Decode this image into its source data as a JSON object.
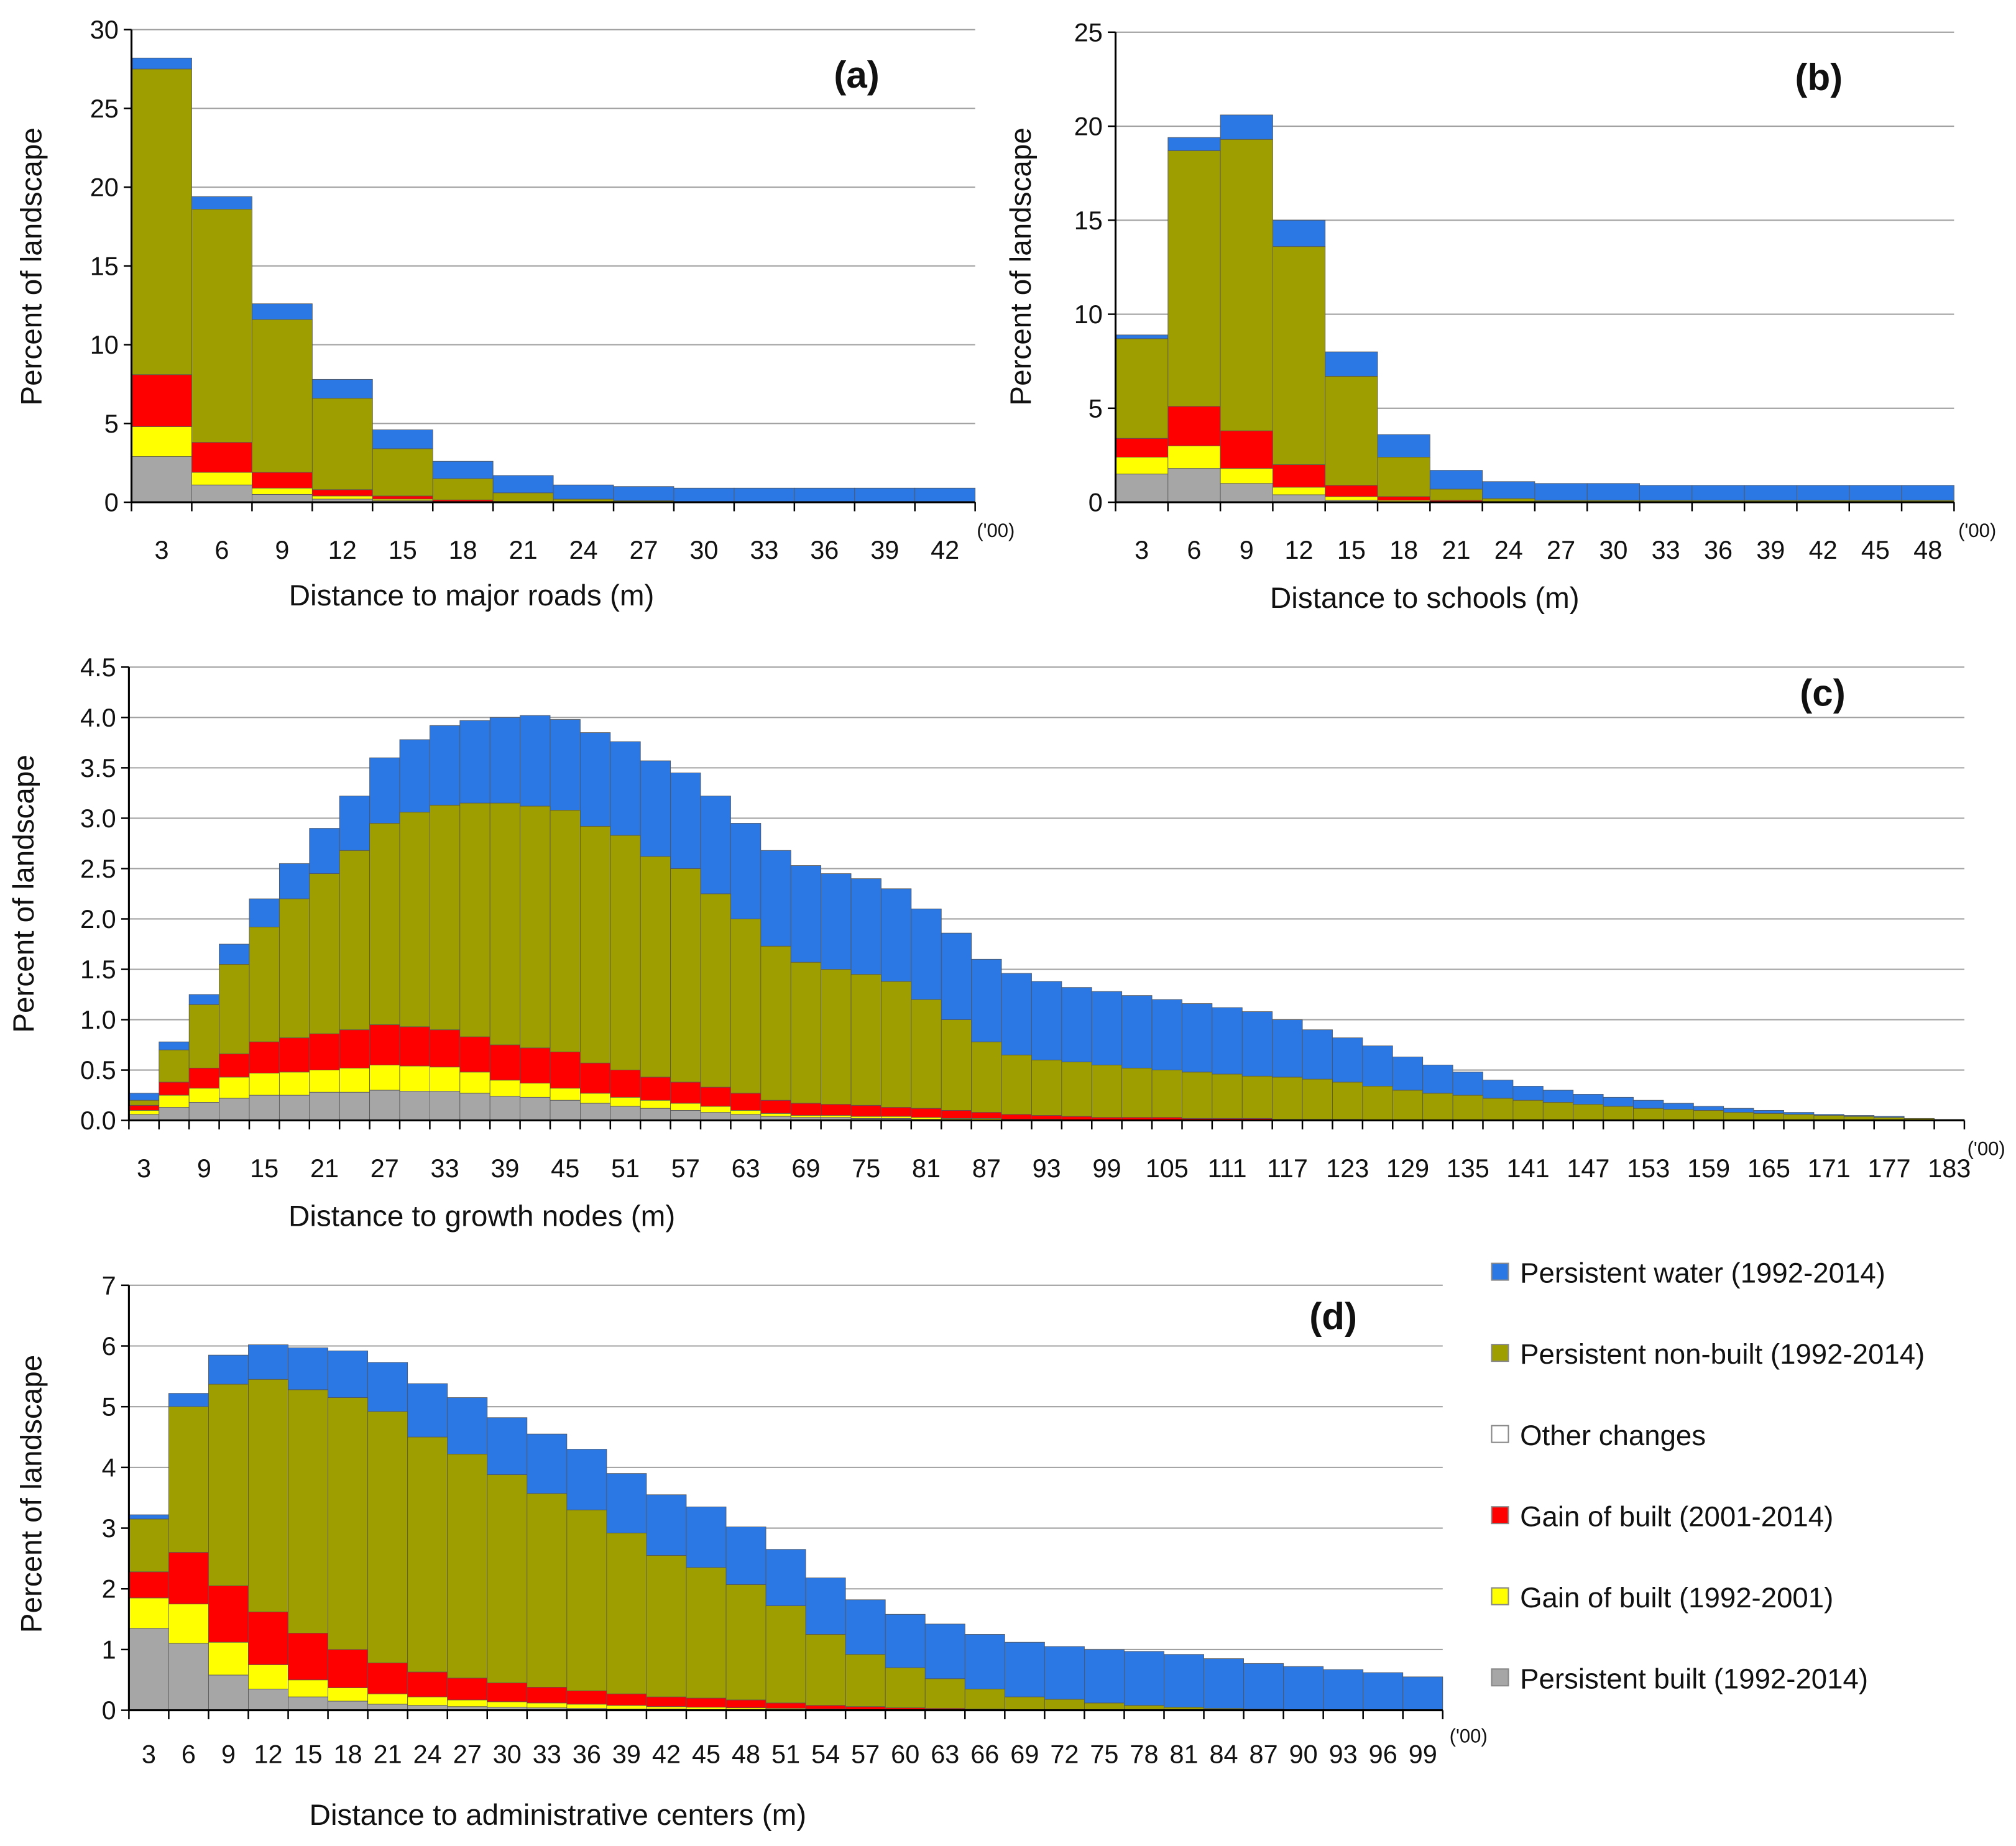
{
  "legend": [
    {
      "name": "Persistent water (1992-2014)",
      "color": "#2b78e4"
    },
    {
      "name": "Persistent non-built (1992-2014)",
      "color": "#9e9e00"
    },
    {
      "name": "Other changes",
      "color": "#ffffff"
    },
    {
      "name": "Gain of built (2001-2014)",
      "color": "#ff0000"
    },
    {
      "name": "Gain of built (1992-2001)",
      "color": "#ffff00"
    },
    {
      "name": "Persistent built (1992-2014)",
      "color": "#a6a6a6"
    }
  ],
  "chart_data": [
    {
      "panel": "(a)",
      "type": "bar",
      "stacked": true,
      "stack_representation": "cumulative top of each series (bottom to top)",
      "xlabel": "Distance to major roads (m)",
      "ylabel": "Percent of landscape",
      "unit_note": "('00)",
      "ylim": [
        0,
        30
      ],
      "yticks": [
        "0",
        "5",
        "10",
        "15",
        "20",
        "25",
        "30"
      ],
      "label_every": 1,
      "grid": true,
      "categories": [
        "3",
        "6",
        "9",
        "12",
        "15",
        "18",
        "21",
        "24",
        "27",
        "30",
        "33",
        "36",
        "39",
        "42"
      ],
      "series": [
        {
          "name": "Persistent built (1992-2014)",
          "color": "#a6a6a6",
          "cumulative": [
            2.9,
            1.1,
            0.5,
            0.2,
            0.1,
            0,
            0,
            0,
            0,
            0,
            0,
            0,
            0,
            0
          ]
        },
        {
          "name": "Gain of built (1992-2001)",
          "color": "#ffff00",
          "cumulative": [
            4.8,
            1.9,
            0.9,
            0.4,
            0.2,
            0.05,
            0,
            0,
            0,
            0,
            0,
            0,
            0,
            0
          ]
        },
        {
          "name": "Gain of built (2001-2014)",
          "color": "#ff0000",
          "cumulative": [
            8.1,
            3.8,
            1.9,
            0.8,
            0.4,
            0.15,
            0.05,
            0,
            0,
            0,
            0,
            0,
            0,
            0
          ]
        },
        {
          "name": "Persistent non-built (1992-2014)",
          "color": "#9e9e00",
          "cumulative": [
            27.5,
            18.6,
            11.6,
            6.6,
            3.4,
            1.5,
            0.6,
            0.2,
            0.1,
            0.05,
            0.05,
            0.05,
            0.05,
            0.05
          ]
        },
        {
          "name": "Persistent water (1992-2014)",
          "color": "#2b78e4",
          "cumulative": [
            28.2,
            19.4,
            12.6,
            7.8,
            4.6,
            2.6,
            1.7,
            1.1,
            1.0,
            0.9,
            0.9,
            0.9,
            0.9,
            0.9
          ]
        }
      ]
    },
    {
      "panel": "(b)",
      "type": "bar",
      "stacked": true,
      "stack_representation": "cumulative top of each series (bottom to top)",
      "xlabel": "Distance to schools (m)",
      "ylabel": "Percent of landscape",
      "unit_note": "('00)",
      "ylim": [
        0,
        25
      ],
      "yticks": [
        "0",
        "5",
        "10",
        "15",
        "20",
        "25"
      ],
      "label_every": 1,
      "grid": true,
      "categories": [
        "3",
        "6",
        "9",
        "12",
        "15",
        "18",
        "21",
        "24",
        "27",
        "30",
        "33",
        "36",
        "39",
        "42",
        "45",
        "48"
      ],
      "series": [
        {
          "name": "Persistent built (1992-2014)",
          "color": "#a6a6a6",
          "cumulative": [
            1.5,
            1.8,
            1.0,
            0.4,
            0.1,
            0,
            0,
            0,
            0,
            0,
            0,
            0,
            0,
            0,
            0,
            0
          ]
        },
        {
          "name": "Gain of built (1992-2001)",
          "color": "#ffff00",
          "cumulative": [
            2.4,
            3.0,
            1.8,
            0.8,
            0.3,
            0.1,
            0,
            0,
            0,
            0,
            0,
            0,
            0,
            0,
            0,
            0
          ]
        },
        {
          "name": "Gain of built (2001-2014)",
          "color": "#ff0000",
          "cumulative": [
            3.4,
            5.1,
            3.8,
            2.0,
            0.9,
            0.3,
            0.1,
            0,
            0,
            0,
            0,
            0,
            0,
            0,
            0,
            0
          ]
        },
        {
          "name": "Persistent non-built (1992-2014)",
          "color": "#9e9e00",
          "cumulative": [
            8.7,
            18.7,
            19.3,
            13.6,
            6.7,
            2.4,
            0.7,
            0.2,
            0.1,
            0.1,
            0.1,
            0.1,
            0.1,
            0.1,
            0.1,
            0.1
          ]
        },
        {
          "name": "Persistent water (1992-2014)",
          "color": "#2b78e4",
          "cumulative": [
            8.9,
            19.4,
            20.6,
            15.0,
            8.0,
            3.6,
            1.7,
            1.1,
            1.0,
            1.0,
            0.9,
            0.9,
            0.9,
            0.9,
            0.9,
            0.9
          ]
        }
      ]
    },
    {
      "panel": "(c)",
      "type": "bar",
      "stacked": true,
      "stack_representation": "cumulative top of each series (bottom to top)",
      "xlabel": "Distance to growth nodes (m)",
      "ylabel": "Percent of landscape",
      "unit_note": "('00)",
      "ylim": [
        0,
        4.5
      ],
      "yticks": [
        "0.0",
        "0.5",
        "1.0",
        "1.5",
        "2.0",
        "2.5",
        "3.0",
        "3.5",
        "4.0",
        "4.5"
      ],
      "label_every": 2,
      "grid": true,
      "categories": [
        "3",
        "6",
        "9",
        "12",
        "15",
        "18",
        "21",
        "24",
        "27",
        "30",
        "33",
        "36",
        "39",
        "42",
        "45",
        "48",
        "51",
        "54",
        "57",
        "60",
        "63",
        "66",
        "69",
        "72",
        "75",
        "78",
        "81",
        "84",
        "87",
        "90",
        "93",
        "96",
        "99",
        "102",
        "105",
        "108",
        "111",
        "114",
        "117",
        "120",
        "123",
        "126",
        "129",
        "132",
        "135",
        "138",
        "141",
        "144",
        "147",
        "150",
        "153",
        "156",
        "159",
        "162",
        "165",
        "168",
        "171",
        "174",
        "177",
        "180",
        "183"
      ],
      "series": [
        {
          "name": "Persistent built (1992-2014)",
          "color": "#a6a6a6",
          "cumulative": [
            0.06,
            0.13,
            0.18,
            0.22,
            0.25,
            0.25,
            0.28,
            0.28,
            0.3,
            0.29,
            0.29,
            0.27,
            0.24,
            0.23,
            0.2,
            0.17,
            0.14,
            0.12,
            0.1,
            0.08,
            0.06,
            0.04,
            0.03,
            0.03,
            0.02,
            0.02,
            0.01,
            0.01,
            0,
            0,
            0,
            0,
            0,
            0,
            0,
            0,
            0,
            0,
            0,
            0,
            0,
            0,
            0,
            0,
            0,
            0,
            0,
            0,
            0,
            0,
            0,
            0,
            0,
            0,
            0,
            0,
            0,
            0,
            0,
            0,
            0
          ]
        },
        {
          "name": "Gain of built (1992-2001)",
          "color": "#ffff00",
          "cumulative": [
            0.1,
            0.25,
            0.32,
            0.43,
            0.47,
            0.48,
            0.5,
            0.52,
            0.55,
            0.54,
            0.53,
            0.48,
            0.4,
            0.37,
            0.32,
            0.27,
            0.23,
            0.2,
            0.17,
            0.14,
            0.1,
            0.07,
            0.05,
            0.05,
            0.04,
            0.04,
            0.03,
            0.02,
            0.02,
            0.01,
            0.01,
            0,
            0,
            0,
            0,
            0,
            0,
            0,
            0,
            0,
            0,
            0,
            0,
            0,
            0,
            0,
            0,
            0,
            0,
            0,
            0,
            0,
            0,
            0,
            0,
            0,
            0,
            0,
            0,
            0,
            0
          ]
        },
        {
          "name": "Gain of built (2001-2014)",
          "color": "#ff0000",
          "cumulative": [
            0.15,
            0.38,
            0.52,
            0.66,
            0.78,
            0.82,
            0.86,
            0.9,
            0.95,
            0.93,
            0.9,
            0.83,
            0.75,
            0.72,
            0.68,
            0.57,
            0.5,
            0.43,
            0.38,
            0.33,
            0.27,
            0.2,
            0.17,
            0.16,
            0.15,
            0.13,
            0.12,
            0.1,
            0.08,
            0.06,
            0.05,
            0.04,
            0.03,
            0.03,
            0.03,
            0.02,
            0.02,
            0.02,
            0.01,
            0.01,
            0.01,
            0,
            0,
            0,
            0,
            0,
            0,
            0,
            0,
            0,
            0,
            0,
            0,
            0,
            0,
            0,
            0,
            0,
            0,
            0,
            0
          ]
        },
        {
          "name": "Persistent non-built (1992-2014)",
          "color": "#9e9e00",
          "cumulative": [
            0.2,
            0.7,
            1.15,
            1.55,
            1.92,
            2.2,
            2.45,
            2.68,
            2.95,
            3.06,
            3.13,
            3.15,
            3.15,
            3.12,
            3.08,
            2.92,
            2.83,
            2.62,
            2.5,
            2.25,
            2.0,
            1.73,
            1.57,
            1.5,
            1.45,
            1.38,
            1.2,
            1.0,
            0.78,
            0.65,
            0.6,
            0.58,
            0.55,
            0.52,
            0.5,
            0.48,
            0.46,
            0.44,
            0.43,
            0.41,
            0.38,
            0.34,
            0.3,
            0.27,
            0.25,
            0.22,
            0.2,
            0.18,
            0.16,
            0.14,
            0.12,
            0.11,
            0.1,
            0.08,
            0.07,
            0.06,
            0.05,
            0.04,
            0.03,
            0.02,
            0.01
          ]
        },
        {
          "name": "Persistent water (1992-2014)",
          "color": "#2b78e4",
          "cumulative": [
            0.27,
            0.78,
            1.25,
            1.75,
            2.2,
            2.55,
            2.9,
            3.22,
            3.6,
            3.78,
            3.92,
            3.97,
            4.0,
            4.02,
            3.98,
            3.85,
            3.76,
            3.57,
            3.45,
            3.22,
            2.95,
            2.68,
            2.53,
            2.45,
            2.4,
            2.3,
            2.1,
            1.86,
            1.6,
            1.46,
            1.38,
            1.32,
            1.28,
            1.24,
            1.2,
            1.16,
            1.12,
            1.08,
            1.0,
            0.9,
            0.82,
            0.74,
            0.63,
            0.55,
            0.48,
            0.4,
            0.34,
            0.3,
            0.26,
            0.23,
            0.2,
            0.17,
            0.14,
            0.12,
            0.1,
            0.08,
            0.06,
            0.05,
            0.04,
            0.02,
            0.01
          ]
        }
      ]
    },
    {
      "panel": "(d)",
      "type": "bar",
      "stacked": true,
      "stack_representation": "cumulative top of each series (bottom to top)",
      "xlabel": "Distance to administrative centers  (m)",
      "ylabel": "Percent of landscape",
      "unit_note": "('00)",
      "ylim": [
        0,
        7
      ],
      "yticks": [
        "0",
        "1",
        "2",
        "3",
        "4",
        "5",
        "6",
        "7"
      ],
      "label_every": 1,
      "grid": true,
      "categories": [
        "3",
        "6",
        "9",
        "12",
        "15",
        "18",
        "21",
        "24",
        "27",
        "30",
        "33",
        "36",
        "39",
        "42",
        "45",
        "48",
        "51",
        "54",
        "57",
        "60",
        "63",
        "66",
        "69",
        "72",
        "75",
        "78",
        "81",
        "84",
        "87",
        "90",
        "93",
        "96",
        "99"
      ],
      "series": [
        {
          "name": "Persistent built (1992-2014)",
          "color": "#a6a6a6",
          "cumulative": [
            1.35,
            1.1,
            0.58,
            0.35,
            0.22,
            0.15,
            0.1,
            0.08,
            0.06,
            0.05,
            0.04,
            0.03,
            0.02,
            0.02,
            0.01,
            0,
            0,
            0,
            0,
            0,
            0,
            0,
            0,
            0,
            0,
            0,
            0,
            0,
            0,
            0,
            0,
            0,
            0
          ]
        },
        {
          "name": "Gain of built (1992-2001)",
          "color": "#ffff00",
          "cumulative": [
            1.85,
            1.75,
            1.12,
            0.75,
            0.5,
            0.37,
            0.27,
            0.22,
            0.17,
            0.14,
            0.12,
            0.1,
            0.08,
            0.06,
            0.05,
            0.04,
            0.03,
            0.02,
            0.01,
            0,
            0,
            0,
            0,
            0,
            0,
            0,
            0,
            0,
            0,
            0,
            0,
            0,
            0
          ]
        },
        {
          "name": "Gain of built (2001-2014)",
          "color": "#ff0000",
          "cumulative": [
            2.28,
            2.6,
            2.05,
            1.62,
            1.27,
            1.0,
            0.78,
            0.63,
            0.53,
            0.45,
            0.38,
            0.32,
            0.27,
            0.22,
            0.2,
            0.17,
            0.12,
            0.08,
            0.06,
            0.04,
            0.03,
            0.02,
            0.01,
            0.01,
            0.01,
            0,
            0,
            0,
            0,
            0,
            0,
            0,
            0
          ]
        },
        {
          "name": "Persistent non-built (1992-2014)",
          "color": "#9e9e00",
          "cumulative": [
            3.15,
            5.0,
            5.37,
            5.45,
            5.28,
            5.15,
            4.92,
            4.5,
            4.22,
            3.88,
            3.57,
            3.3,
            2.92,
            2.55,
            2.35,
            2.07,
            1.72,
            1.25,
            0.92,
            0.7,
            0.52,
            0.35,
            0.22,
            0.18,
            0.12,
            0.08,
            0.05,
            0.03,
            0.02,
            0.01,
            0.01,
            0,
            0
          ]
        },
        {
          "name": "Persistent water (1992-2014)",
          "color": "#2b78e4",
          "cumulative": [
            3.22,
            5.22,
            5.85,
            6.02,
            5.97,
            5.92,
            5.73,
            5.38,
            5.15,
            4.82,
            4.55,
            4.3,
            3.9,
            3.55,
            3.35,
            3.02,
            2.65,
            2.18,
            1.82,
            1.58,
            1.42,
            1.25,
            1.12,
            1.05,
            1.0,
            0.97,
            0.92,
            0.85,
            0.77,
            0.72,
            0.67,
            0.62,
            0.55
          ]
        }
      ]
    }
  ]
}
